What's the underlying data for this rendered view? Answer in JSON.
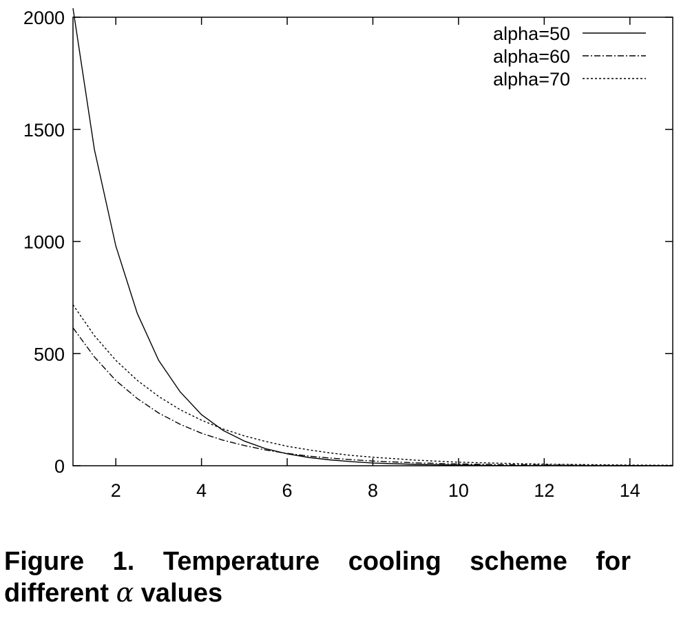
{
  "chart_data": {
    "type": "line",
    "title": "",
    "xlabel": "",
    "ylabel": "",
    "xlim": [
      1,
      15
    ],
    "ylim": [
      0,
      2000
    ],
    "xticks": [
      2,
      4,
      6,
      8,
      10,
      12,
      14
    ],
    "yticks": [
      0,
      500,
      1000,
      1500,
      2000
    ],
    "legend_position": "top-right",
    "grid": false,
    "series": [
      {
        "name": "alpha=50",
        "style": "solid",
        "x": [
          1,
          1.5,
          2,
          2.5,
          3,
          3.5,
          4,
          4.5,
          5,
          5.5,
          6,
          6.5,
          7,
          7.5,
          8,
          9,
          10,
          11,
          12,
          13,
          14,
          15
        ],
        "y": [
          2040,
          1410,
          980,
          680,
          470,
          330,
          228,
          158,
          110,
          76,
          53,
          37,
          26,
          18,
          12,
          6,
          3,
          1,
          1,
          0,
          0,
          0
        ]
      },
      {
        "name": "alpha=60",
        "style": "dash-dot",
        "x": [
          1,
          1.5,
          2,
          2.5,
          3,
          3.5,
          4,
          4.5,
          5,
          5.5,
          6,
          6.5,
          7,
          7.5,
          8,
          9,
          10,
          11,
          12,
          13,
          14,
          15
        ],
        "y": [
          615,
          485,
          380,
          300,
          235,
          185,
          145,
          114,
          90,
          70,
          55,
          43,
          34,
          27,
          21,
          13,
          8,
          5,
          3,
          2,
          1,
          1
        ]
      },
      {
        "name": "alpha=70",
        "style": "dotted",
        "x": [
          1,
          1.5,
          2,
          2.5,
          3,
          3.5,
          4,
          4.5,
          5,
          5.5,
          6,
          6.5,
          7,
          7.5,
          8,
          9,
          10,
          11,
          12,
          13,
          14,
          15
        ],
        "y": [
          718,
          580,
          470,
          381,
          309,
          250,
          203,
          164,
          133,
          108,
          87,
          71,
          57,
          46,
          38,
          25,
          16,
          11,
          7,
          5,
          3,
          2
        ]
      }
    ]
  },
  "caption": {
    "prefix": "Figure 1. Temperature cooling scheme for different",
    "symbol": "α",
    "suffix": "values"
  }
}
